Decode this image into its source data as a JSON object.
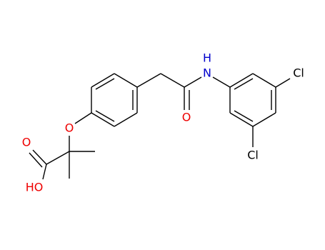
{
  "atoms": [
    {
      "label": "HO"
    },
    {
      "label": "O"
    },
    {
      "label": "O"
    },
    {
      "label": "O"
    },
    {
      "label": "N"
    },
    {
      "label": "H"
    },
    {
      "label": "Cl"
    },
    {
      "label": "Cl"
    }
  ]
}
